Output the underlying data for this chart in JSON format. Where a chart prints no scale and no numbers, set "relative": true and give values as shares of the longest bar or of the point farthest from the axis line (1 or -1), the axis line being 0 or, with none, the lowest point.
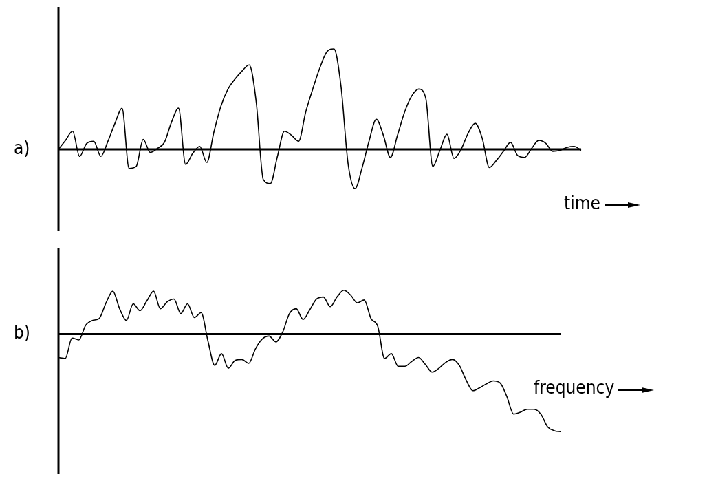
{
  "chart_data": [
    {
      "type": "line",
      "title": "a)",
      "xlabel": "time",
      "relative": true,
      "categories": [
        null,
        null,
        null,
        null,
        null,
        null,
        null,
        null,
        null,
        null,
        null,
        null,
        null,
        null,
        null,
        null,
        null,
        null,
        null,
        null,
        null,
        null,
        null,
        null,
        null,
        null,
        null,
        null,
        null,
        null,
        null,
        null,
        null,
        null,
        null,
        null,
        null,
        null,
        null,
        null,
        null,
        null,
        null,
        null,
        null,
        null,
        null,
        null,
        null,
        null,
        null,
        null,
        null,
        null,
        null,
        null,
        null,
        null,
        null,
        null,
        null,
        null,
        null,
        null,
        null,
        null,
        null,
        null,
        null,
        null,
        null,
        null,
        null,
        null,
        null
      ],
      "series": [
        {
          "color": "#000000",
          "values": [
            0,
            0.09,
            0.18,
            -0.07,
            0.06,
            0.08,
            -0.07,
            0.08,
            0.26,
            0.41,
            -0.19,
            -0.17,
            0.1,
            -0.03,
            0.01,
            0.07,
            0.27,
            0.41,
            -0.15,
            -0.04,
            0.03,
            -0.13,
            0.17,
            0.43,
            0.6,
            0.7,
            0.78,
            0.84,
            0.47,
            -0.3,
            -0.34,
            -0.07,
            0.18,
            0.14,
            0.08,
            0.37,
            0.6,
            0.81,
            0.97,
            1,
            0.63,
            -0.14,
            -0.39,
            -0.18,
            0.09,
            0.3,
            0.14,
            -0.08,
            0.14,
            0.37,
            0.53,
            0.6,
            0.51,
            -0.17,
            -0.01,
            0.15,
            -0.09,
            0,
            0.16,
            0.26,
            0.11,
            -0.18,
            -0.11,
            -0.02,
            0.07,
            -0.06,
            -0.08,
            0.01,
            0.09,
            0.06,
            -0.02,
            -0.01,
            0.02,
            0.03,
            -0.01
          ]
        }
      ]
    },
    {
      "type": "line",
      "title": "b)",
      "xlabel": "frequency",
      "relative": true,
      "categories": [
        null,
        null,
        null,
        null,
        null,
        null,
        null,
        null,
        null,
        null,
        null,
        null,
        null,
        null,
        null,
        null,
        null,
        null,
        null,
        null,
        null,
        null,
        null,
        null,
        null,
        null,
        null,
        null,
        null,
        null,
        null,
        null,
        null,
        null,
        null,
        null,
        null,
        null,
        null,
        null,
        null,
        null,
        null,
        null,
        null,
        null,
        null,
        null,
        null,
        null,
        null,
        null,
        null,
        null,
        null,
        null,
        null,
        null,
        null,
        null,
        null,
        null,
        null,
        null,
        null,
        null,
        null,
        null,
        null,
        null,
        null,
        null,
        null,
        null,
        null
      ],
      "series": [
        {
          "color": "#000000",
          "values": [
            -0.24,
            -0.25,
            -0.04,
            -0.06,
            0.09,
            0.14,
            0.16,
            0.32,
            0.44,
            0.26,
            0.14,
            0.31,
            0.24,
            0.34,
            0.44,
            0.26,
            0.33,
            0.36,
            0.21,
            0.31,
            0.17,
            0.22,
            -0.07,
            -0.32,
            -0.2,
            -0.35,
            -0.27,
            -0.26,
            -0.3,
            -0.15,
            -0.05,
            -0.02,
            -0.08,
            0.02,
            0.21,
            0.26,
            0.15,
            0.25,
            0.36,
            0.38,
            0.28,
            0.38,
            0.45,
            0.4,
            0.32,
            0.35,
            0.16,
            0.08,
            -0.25,
            -0.2,
            -0.33,
            -0.33,
            -0.28,
            -0.24,
            -0.31,
            -0.39,
            -0.35,
            -0.29,
            -0.26,
            -0.32,
            -0.47,
            -0.58,
            -0.55,
            -0.51,
            -0.48,
            -0.5,
            -0.64,
            -0.82,
            -0.8,
            -0.77,
            -0.77,
            -0.82,
            -0.95,
            -0.99,
            -1
          ]
        }
      ]
    }
  ]
}
